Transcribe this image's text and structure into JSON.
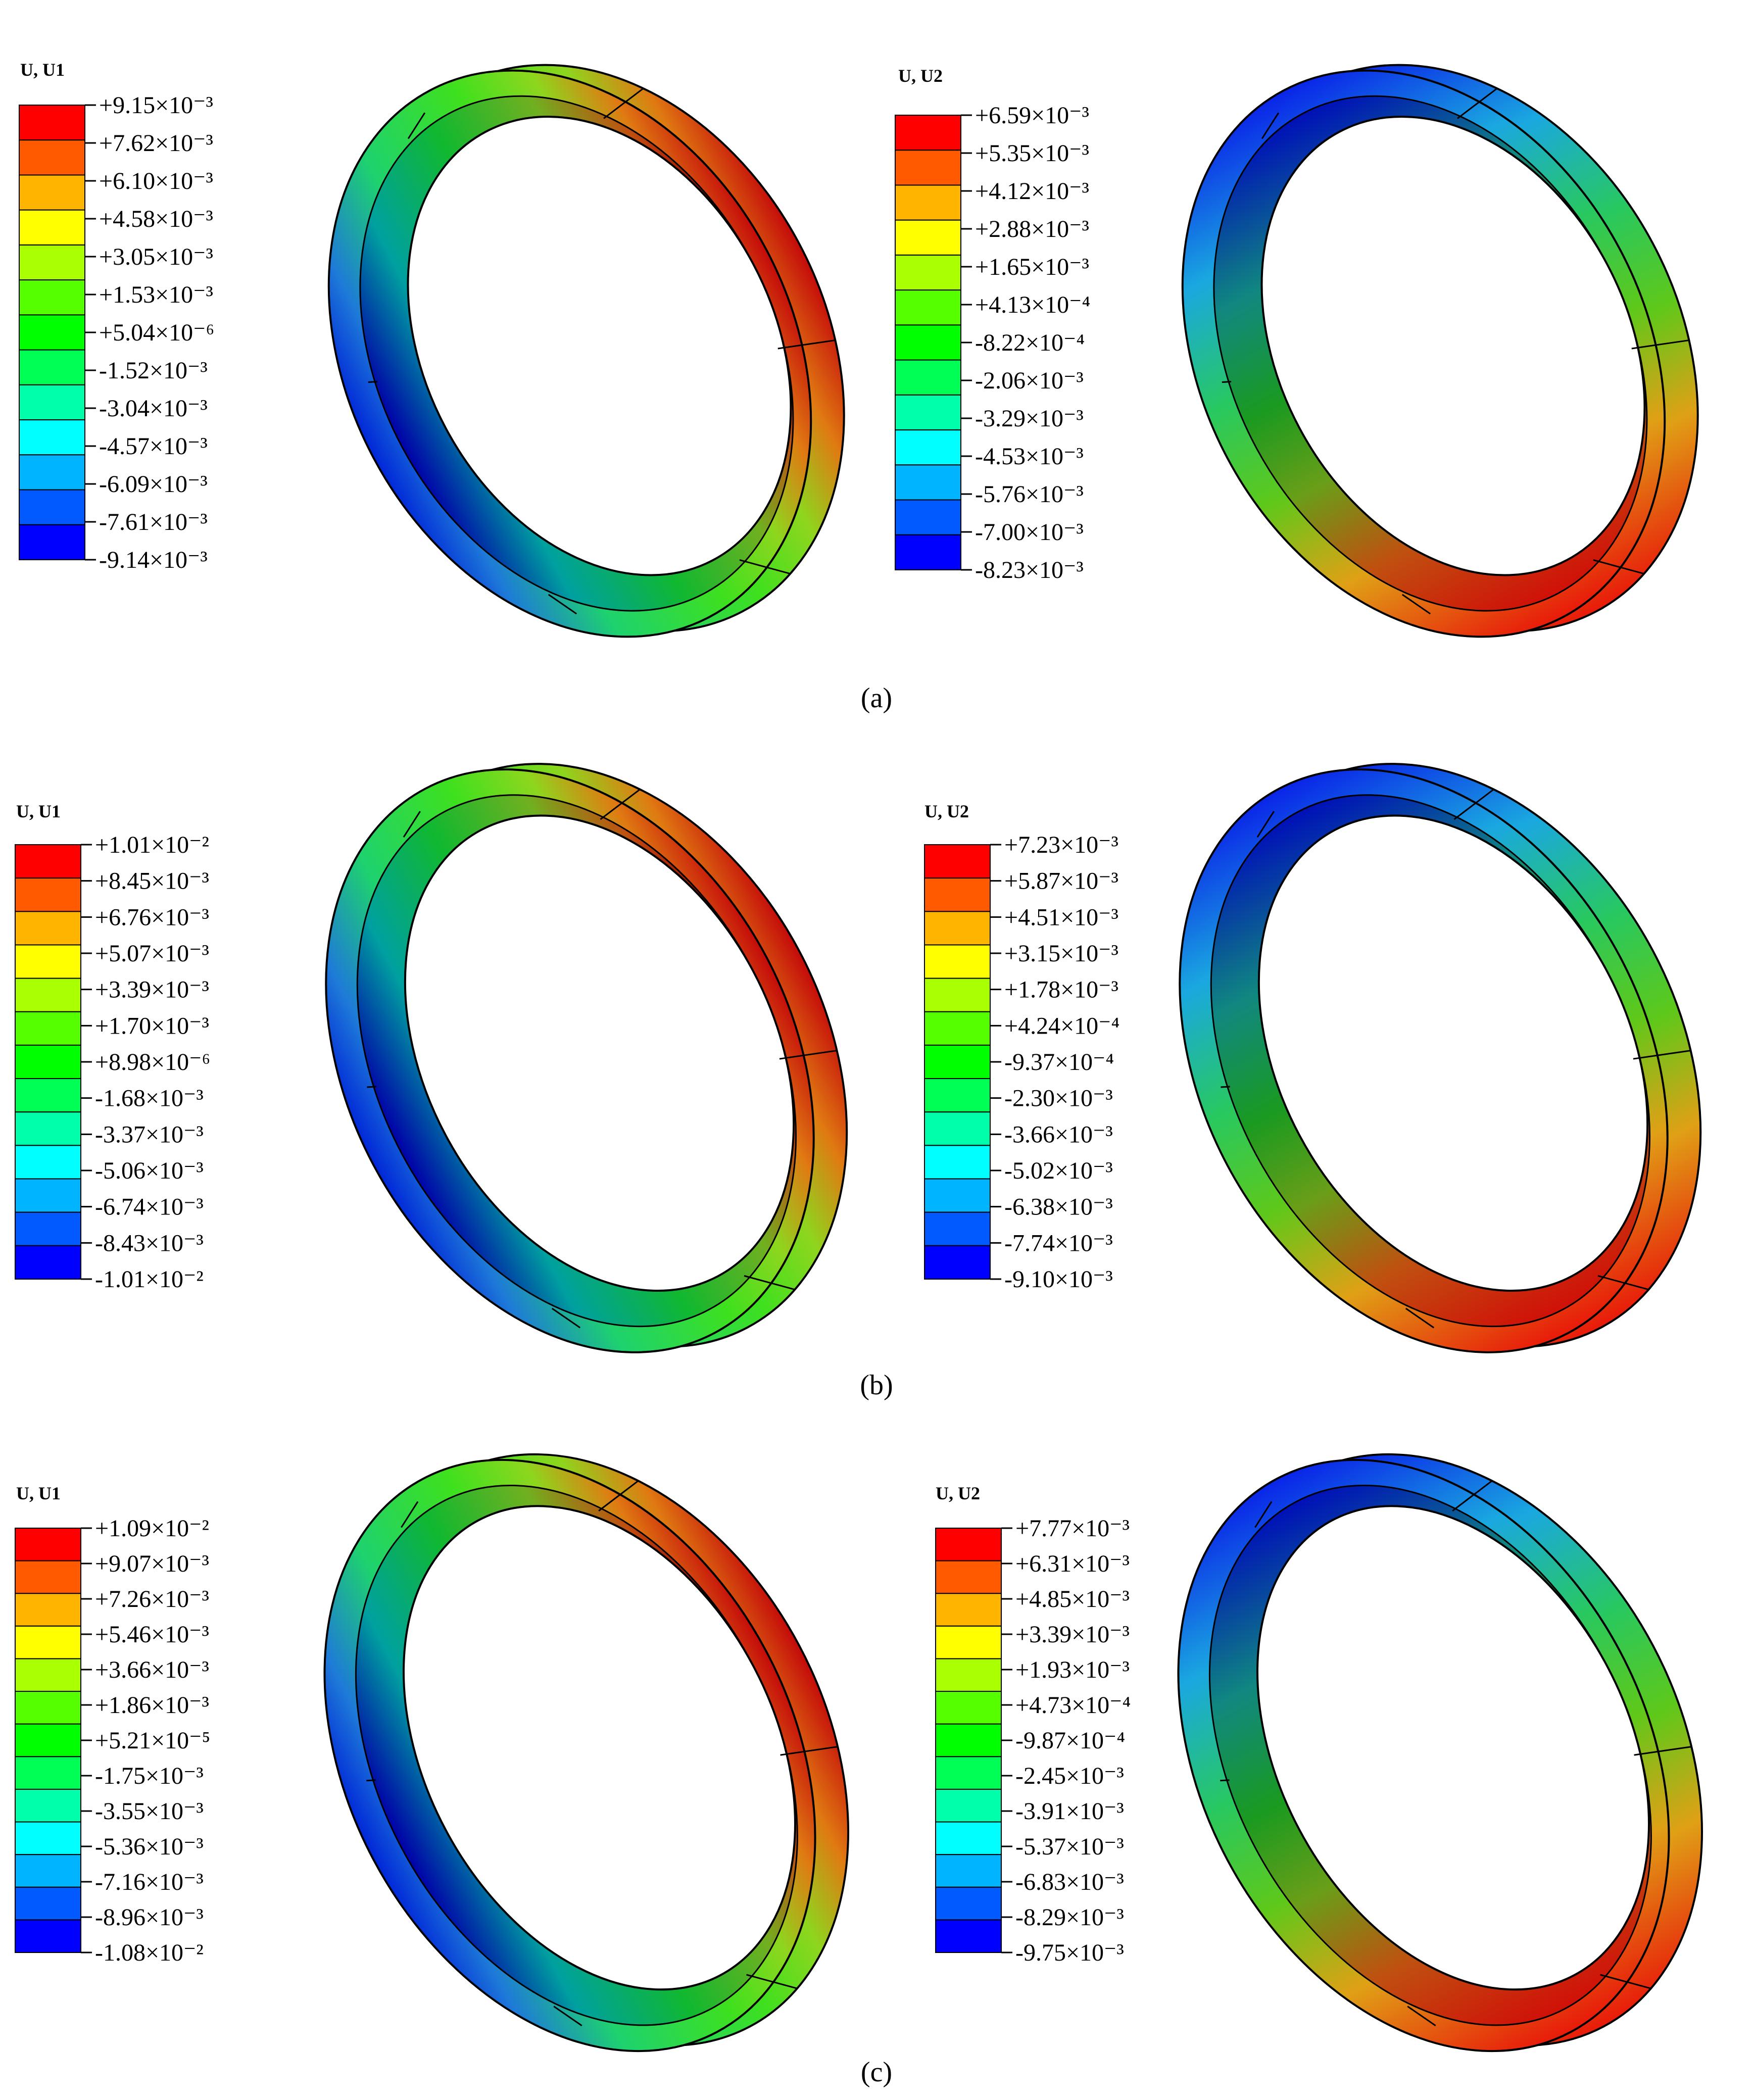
{
  "panels": [
    {
      "caption": "(a)",
      "plots": [
        {
          "header": "U, U1",
          "ticks": [
            "+9.15×10⁻³",
            "+7.62×10⁻³",
            "+6.10×10⁻³",
            "+4.58×10⁻³",
            "+3.05×10⁻³",
            "+1.53×10⁻³",
            "+5.04×10⁻⁶",
            "-1.52×10⁻³",
            "-3.04×10⁻³",
            "-4.57×10⁻³",
            "-6.09×10⁻³",
            "-7.61×10⁻³",
            "-9.14×10⁻³"
          ]
        },
        {
          "header": "U, U2",
          "ticks": [
            "+6.59×10⁻³",
            "+5.35×10⁻³",
            "+4.12×10⁻³",
            "+2.88×10⁻³",
            "+1.65×10⁻³",
            "+4.13×10⁻⁴",
            "-8.22×10⁻⁴",
            "-2.06×10⁻³",
            "-3.29×10⁻³",
            "-4.53×10⁻³",
            "-5.76×10⁻³",
            "-7.00×10⁻³",
            "-8.23×10⁻³"
          ]
        }
      ]
    },
    {
      "caption": "(b)",
      "plots": [
        {
          "header": "U, U1",
          "ticks": [
            "+1.01×10⁻²",
            "+8.45×10⁻³",
            "+6.76×10⁻³",
            "+5.07×10⁻³",
            "+3.39×10⁻³",
            "+1.70×10⁻³",
            "+8.98×10⁻⁶",
            "-1.68×10⁻³",
            "-3.37×10⁻³",
            "-5.06×10⁻³",
            "-6.74×10⁻³",
            "-8.43×10⁻³",
            "-1.01×10⁻²"
          ]
        },
        {
          "header": "U, U2",
          "ticks": [
            "+7.23×10⁻³",
            "+5.87×10⁻³",
            "+4.51×10⁻³",
            "+3.15×10⁻³",
            "+1.78×10⁻³",
            "+4.24×10⁻⁴",
            "-9.37×10⁻⁴",
            "-2.30×10⁻³",
            "-3.66×10⁻³",
            "-5.02×10⁻³",
            "-6.38×10⁻³",
            "-7.74×10⁻³",
            "-9.10×10⁻³"
          ]
        }
      ]
    },
    {
      "caption": "(c)",
      "plots": [
        {
          "header": "U, U1",
          "ticks": [
            "+1.09×10⁻²",
            "+9.07×10⁻³",
            "+7.26×10⁻³",
            "+5.46×10⁻³",
            "+3.66×10⁻³",
            "+1.86×10⁻³",
            "+5.21×10⁻⁵",
            "-1.75×10⁻³",
            "-3.55×10⁻³",
            "-5.36×10⁻³",
            "-7.16×10⁻³",
            "-8.96×10⁻³",
            "-1.08×10⁻²"
          ]
        },
        {
          "header": "U, U2",
          "ticks": [
            "+7.77×10⁻³",
            "+6.31×10⁻³",
            "+4.85×10⁻³",
            "+3.39×10⁻³",
            "+1.93×10⁻³",
            "+4.73×10⁻⁴",
            "-9.87×10⁻⁴",
            "-2.45×10⁻³",
            "-3.91×10⁻³",
            "-5.37×10⁻³",
            "-6.83×10⁻³",
            "-8.29×10⁻³",
            "-9.75×10⁻³"
          ]
        }
      ]
    }
  ],
  "colormap": [
    "#ff0000",
    "#ff5a00",
    "#ffb400",
    "#ffff00",
    "#aaff00",
    "#55ff00",
    "#00ff00",
    "#00ff55",
    "#00ffaa",
    "#00ffff",
    "#00b4ff",
    "#005aff",
    "#0000ff"
  ]
}
